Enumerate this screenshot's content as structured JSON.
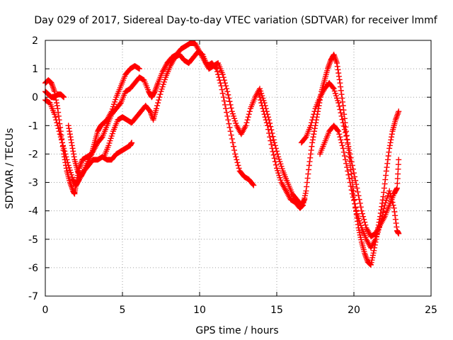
{
  "chart_data": {
    "type": "scatter",
    "title": "Day 029 of 2017, Sidereal Day-to-day VTEC variation (SDTVAR) for receiver lmmf",
    "xlabel": "GPS time / hours",
    "ylabel": "SDTVAR / TECUs",
    "xlim": [
      0,
      25
    ],
    "ylim": [
      -7,
      2
    ],
    "xticks": [
      0,
      5,
      10,
      15,
      20,
      25
    ],
    "yticks": [
      -7,
      -6,
      -5,
      -4,
      -3,
      -2,
      -1,
      0,
      1,
      2
    ],
    "grid": true,
    "marker": "+",
    "series_color": "#ff0000",
    "series": [
      {
        "values": [
          [
            0.0,
            0.5
          ],
          [
            0.2,
            0.6
          ],
          [
            0.4,
            0.5
          ],
          [
            0.6,
            0.2
          ],
          [
            0.8,
            -0.4
          ],
          [
            1.0,
            -1.2
          ],
          [
            1.2,
            -2.0
          ],
          [
            1.4,
            -2.6
          ],
          [
            1.6,
            -3.0
          ],
          [
            1.8,
            -3.3
          ],
          [
            1.9,
            -3.4
          ],
          [
            2.0,
            -3.0
          ],
          [
            2.2,
            -2.5
          ],
          [
            2.4,
            -2.2
          ],
          [
            2.7,
            -2.1
          ],
          [
            3.0,
            -2.0
          ],
          [
            3.2,
            -1.6
          ],
          [
            3.4,
            -1.2
          ],
          [
            3.6,
            -1.0
          ],
          [
            3.8,
            -0.9
          ],
          [
            4.0,
            -0.8
          ],
          [
            4.3,
            -0.5
          ],
          [
            4.6,
            0.0
          ],
          [
            4.9,
            0.4
          ],
          [
            5.2,
            0.8
          ],
          [
            5.5,
            1.0
          ],
          [
            5.8,
            1.1
          ],
          [
            6.1,
            1.0
          ]
        ]
      },
      {
        "values": [
          [
            0.0,
            -0.1
          ],
          [
            0.3,
            -0.2
          ],
          [
            0.6,
            -0.6
          ],
          [
            0.9,
            -1.2
          ],
          [
            1.2,
            -1.8
          ],
          [
            1.5,
            -2.4
          ],
          [
            1.8,
            -2.9
          ],
          [
            2.0,
            -3.1
          ],
          [
            2.2,
            -2.9
          ],
          [
            2.5,
            -2.6
          ],
          [
            2.8,
            -2.4
          ],
          [
            3.1,
            -2.2
          ],
          [
            3.4,
            -2.2
          ],
          [
            3.7,
            -2.1
          ],
          [
            4.0,
            -2.2
          ],
          [
            4.3,
            -2.2
          ],
          [
            4.6,
            -2.0
          ],
          [
            4.9,
            -1.9
          ],
          [
            5.2,
            -1.8
          ],
          [
            5.5,
            -1.7
          ],
          [
            5.6,
            -1.6
          ]
        ]
      },
      {
        "values": [
          [
            0.0,
            0.2
          ],
          [
            0.2,
            0.1
          ],
          [
            0.4,
            0.0
          ],
          [
            0.6,
            0.0
          ],
          [
            0.8,
            0.1
          ],
          [
            1.0,
            0.1
          ],
          [
            1.2,
            0.0
          ]
        ]
      },
      {
        "values": [
          [
            1.5,
            -1.0
          ],
          [
            1.7,
            -1.6
          ],
          [
            1.9,
            -2.2
          ],
          [
            2.1,
            -2.6
          ],
          [
            2.3,
            -2.8
          ],
          [
            2.5,
            -2.6
          ],
          [
            2.8,
            -2.2
          ],
          [
            3.1,
            -1.9
          ],
          [
            3.4,
            -1.6
          ],
          [
            3.7,
            -1.4
          ],
          [
            4.0,
            -1.0
          ],
          [
            4.3,
            -0.6
          ],
          [
            4.6,
            -0.4
          ],
          [
            4.9,
            -0.2
          ],
          [
            5.2,
            0.2
          ],
          [
            5.5,
            0.3
          ],
          [
            5.8,
            0.5
          ],
          [
            6.1,
            0.7
          ],
          [
            6.4,
            0.6
          ],
          [
            6.7,
            0.2
          ],
          [
            6.9,
            0.0
          ],
          [
            7.1,
            0.2
          ],
          [
            7.3,
            0.5
          ],
          [
            7.6,
            0.9
          ],
          [
            7.9,
            1.2
          ],
          [
            8.2,
            1.4
          ],
          [
            8.5,
            1.5
          ],
          [
            8.8,
            1.7
          ],
          [
            9.1,
            1.8
          ],
          [
            9.4,
            1.9
          ],
          [
            9.7,
            1.9
          ],
          [
            10.0,
            1.6
          ],
          [
            10.3,
            1.3
          ],
          [
            10.6,
            1.0
          ],
          [
            10.9,
            1.1
          ],
          [
            11.2,
            1.2
          ],
          [
            11.5,
            0.8
          ],
          [
            11.8,
            0.2
          ],
          [
            12.1,
            -0.5
          ],
          [
            12.4,
            -1.0
          ],
          [
            12.7,
            -1.3
          ],
          [
            13.0,
            -1.0
          ],
          [
            13.3,
            -0.4
          ],
          [
            13.6,
            0.0
          ],
          [
            13.9,
            0.3
          ],
          [
            14.2,
            -0.2
          ],
          [
            14.5,
            -0.8
          ],
          [
            14.8,
            -1.5
          ],
          [
            15.1,
            -2.1
          ],
          [
            15.4,
            -2.6
          ],
          [
            15.7,
            -3.0
          ],
          [
            16.0,
            -3.4
          ],
          [
            16.3,
            -3.6
          ],
          [
            16.6,
            -3.8
          ],
          [
            16.8,
            -3.6
          ]
        ]
      },
      {
        "values": [
          [
            3.8,
            -2.1
          ],
          [
            4.1,
            -1.7
          ],
          [
            4.4,
            -1.2
          ],
          [
            4.7,
            -0.8
          ],
          [
            5.0,
            -0.7
          ],
          [
            5.3,
            -0.8
          ],
          [
            5.6,
            -0.9
          ],
          [
            5.9,
            -0.7
          ],
          [
            6.2,
            -0.5
          ],
          [
            6.5,
            -0.3
          ],
          [
            6.8,
            -0.5
          ],
          [
            7.0,
            -0.8
          ],
          [
            7.2,
            -0.4
          ],
          [
            7.5,
            0.2
          ],
          [
            7.8,
            0.7
          ],
          [
            8.1,
            1.1
          ],
          [
            8.4,
            1.4
          ],
          [
            8.7,
            1.5
          ],
          [
            9.0,
            1.3
          ],
          [
            9.3,
            1.2
          ],
          [
            9.6,
            1.4
          ],
          [
            9.9,
            1.6
          ],
          [
            10.2,
            1.5
          ],
          [
            10.5,
            1.1
          ],
          [
            10.8,
            1.2
          ],
          [
            11.1,
            1.0
          ],
          [
            11.4,
            0.4
          ],
          [
            11.7,
            -0.4
          ],
          [
            12.0,
            -1.2
          ],
          [
            12.3,
            -2.0
          ],
          [
            12.6,
            -2.6
          ],
          [
            12.9,
            -2.8
          ],
          [
            13.2,
            -2.9
          ],
          [
            13.5,
            -3.1
          ]
        ]
      },
      {
        "values": [
          [
            13.8,
            0.2
          ],
          [
            14.1,
            -0.4
          ],
          [
            14.4,
            -1.0
          ],
          [
            14.7,
            -1.8
          ],
          [
            15.0,
            -2.5
          ],
          [
            15.3,
            -3.0
          ],
          [
            15.6,
            -3.3
          ],
          [
            15.9,
            -3.6
          ],
          [
            16.2,
            -3.7
          ],
          [
            16.5,
            -3.9
          ],
          [
            16.7,
            -3.8
          ],
          [
            16.9,
            -3.3
          ],
          [
            17.1,
            -2.4
          ],
          [
            17.3,
            -1.6
          ],
          [
            17.5,
            -1.0
          ],
          [
            17.7,
            -0.4
          ],
          [
            17.9,
            0.2
          ],
          [
            18.1,
            0.6
          ],
          [
            18.3,
            1.0
          ],
          [
            18.5,
            1.3
          ],
          [
            18.7,
            1.5
          ],
          [
            18.9,
            1.2
          ],
          [
            19.1,
            0.5
          ],
          [
            19.3,
            -0.3
          ],
          [
            19.5,
            -1.2
          ],
          [
            19.7,
            -2.1
          ],
          [
            19.9,
            -3.0
          ],
          [
            20.1,
            -3.9
          ],
          [
            20.3,
            -4.6
          ],
          [
            20.5,
            -5.1
          ],
          [
            20.7,
            -5.5
          ],
          [
            20.9,
            -5.8
          ],
          [
            21.1,
            -5.9
          ],
          [
            21.3,
            -5.4
          ],
          [
            21.5,
            -4.8
          ],
          [
            21.7,
            -4.2
          ],
          [
            21.9,
            -3.5
          ],
          [
            22.1,
            -2.6
          ],
          [
            22.3,
            -1.8
          ],
          [
            22.5,
            -1.2
          ],
          [
            22.7,
            -0.8
          ],
          [
            22.9,
            -0.5
          ]
        ]
      },
      {
        "values": [
          [
            16.6,
            -1.6
          ],
          [
            16.9,
            -1.4
          ],
          [
            17.2,
            -1.0
          ],
          [
            17.5,
            -0.4
          ],
          [
            17.8,
            0.0
          ],
          [
            18.1,
            0.3
          ],
          [
            18.4,
            0.5
          ],
          [
            18.7,
            0.3
          ],
          [
            19.0,
            -0.2
          ],
          [
            19.3,
            -0.9
          ],
          [
            19.6,
            -1.6
          ],
          [
            19.9,
            -2.4
          ],
          [
            20.2,
            -3.2
          ],
          [
            20.5,
            -4.0
          ],
          [
            20.8,
            -4.6
          ],
          [
            21.1,
            -4.9
          ],
          [
            21.4,
            -4.8
          ],
          [
            21.7,
            -4.5
          ],
          [
            22.0,
            -4.2
          ],
          [
            22.3,
            -3.8
          ],
          [
            22.6,
            -3.4
          ],
          [
            22.8,
            -3.2
          ],
          [
            22.9,
            -2.2
          ]
        ]
      },
      {
        "values": [
          [
            17.8,
            -2.0
          ],
          [
            18.1,
            -1.6
          ],
          [
            18.4,
            -1.2
          ],
          [
            18.7,
            -1.0
          ],
          [
            19.0,
            -1.2
          ],
          [
            19.3,
            -1.8
          ],
          [
            19.6,
            -2.6
          ],
          [
            19.9,
            -3.4
          ],
          [
            20.2,
            -4.1
          ],
          [
            20.5,
            -4.6
          ],
          [
            20.8,
            -5.0
          ],
          [
            21.1,
            -5.3
          ],
          [
            21.4,
            -5.0
          ],
          [
            21.7,
            -4.5
          ],
          [
            22.0,
            -3.8
          ],
          [
            22.3,
            -3.3
          ],
          [
            22.6,
            -3.9
          ],
          [
            22.8,
            -4.7
          ],
          [
            22.9,
            -4.8
          ]
        ]
      }
    ]
  }
}
